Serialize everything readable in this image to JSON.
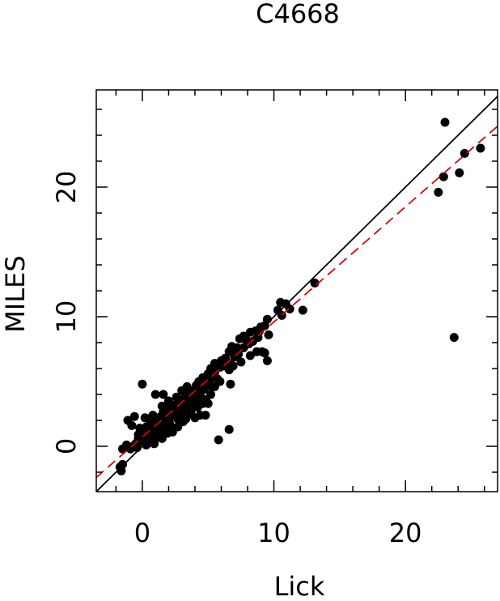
{
  "chart_data": {
    "type": "scatter",
    "title": "C4668",
    "xlabel": "Lick",
    "ylabel": "MILES",
    "xlim": [
      -3.5,
      27
    ],
    "ylim": [
      -3.5,
      27.5
    ],
    "xticks": [
      0,
      10,
      20
    ],
    "yticks": [
      0,
      10,
      20
    ],
    "grid": false,
    "legend": "none",
    "colors": {
      "points": "#000000",
      "identity_line": "#000000",
      "fit_line": "#dd0000"
    },
    "lines": [
      {
        "name": "identity",
        "style": "solid",
        "color": "#000000",
        "x": [
          -3.5,
          27
        ],
        "y": [
          -3.5,
          27
        ]
      },
      {
        "name": "fit",
        "style": "dashed",
        "color": "#dd0000",
        "x": [
          -3.5,
          27
        ],
        "y": [
          -2.4,
          24.7
        ]
      }
    ],
    "points": [
      [
        23.0,
        25.0
      ],
      [
        24.5,
        22.6
      ],
      [
        25.7,
        23.0
      ],
      [
        22.9,
        20.8
      ],
      [
        24.1,
        21.1
      ],
      [
        22.5,
        19.6
      ],
      [
        23.7,
        8.4
      ],
      [
        13.1,
        12.6
      ],
      [
        10.5,
        11.1
      ],
      [
        10.9,
        11.0
      ],
      [
        11.2,
        10.6
      ],
      [
        12.2,
        10.5
      ],
      [
        10.3,
        10.5
      ],
      [
        10.6,
        10.1
      ],
      [
        9.5,
        9.8
      ],
      [
        9.6,
        8.6
      ],
      [
        9.0,
        9.2
      ],
      [
        9.3,
        9.3
      ],
      [
        8.6,
        8.9
      ],
      [
        8.2,
        8.8
      ],
      [
        8.8,
        8.4
      ],
      [
        7.7,
        8.5
      ],
      [
        7.4,
        8.3
      ],
      [
        8.1,
        7.9
      ],
      [
        7.7,
        7.6
      ],
      [
        7.2,
        7.6
      ],
      [
        6.8,
        7.7
      ],
      [
        6.6,
        7.3
      ],
      [
        7.0,
        6.9
      ],
      [
        8.7,
        7.3
      ],
      [
        9.1,
        7.3
      ],
      [
        9.3,
        7.2
      ],
      [
        8.2,
        7.0
      ],
      [
        9.5,
        6.6
      ],
      [
        6.3,
        6.8
      ],
      [
        6.0,
        6.6
      ],
      [
        6.4,
        6.3
      ],
      [
        5.5,
        6.4
      ],
      [
        5.9,
        6.1
      ],
      [
        6.6,
        5.9
      ],
      [
        6.7,
        6.4
      ],
      [
        6.9,
        6.2
      ],
      [
        5.2,
        6.0
      ],
      [
        5.5,
        5.7
      ],
      [
        4.9,
        5.4
      ],
      [
        5.1,
        5.1
      ],
      [
        4.6,
        5.3
      ],
      [
        4.3,
        5.0
      ],
      [
        4.9,
        4.8
      ],
      [
        4.5,
        4.5
      ],
      [
        4.1,
        4.7
      ],
      [
        3.9,
        4.3
      ],
      [
        4.7,
        4.4
      ],
      [
        5.7,
        5.2
      ],
      [
        3.6,
        4.1
      ],
      [
        3.8,
        3.8
      ],
      [
        3.3,
        4.0
      ],
      [
        4.2,
        3.6
      ],
      [
        3.1,
        3.6
      ],
      [
        3.5,
        3.4
      ],
      [
        2.9,
        3.4
      ],
      [
        4.6,
        3.3
      ],
      [
        2.8,
        3.1
      ],
      [
        3.3,
        3.0
      ],
      [
        2.5,
        3.2
      ],
      [
        3.9,
        3.0
      ],
      [
        2.3,
        3.0
      ],
      [
        2.6,
        2.7
      ],
      [
        3.0,
        2.5
      ],
      [
        1.9,
        3.0
      ],
      [
        2.1,
        2.5
      ],
      [
        1.6,
        2.7
      ],
      [
        2.4,
        2.3
      ],
      [
        1.8,
        2.1
      ],
      [
        1.4,
        2.3
      ],
      [
        2.9,
        2.0
      ],
      [
        1.5,
        1.9
      ],
      [
        1.1,
        2.1
      ],
      [
        1.9,
        1.6
      ],
      [
        1.3,
        1.6
      ],
      [
        0.9,
        1.8
      ],
      [
        0.6,
        1.9
      ],
      [
        1.0,
        1.3
      ],
      [
        0.6,
        1.4
      ],
      [
        0.3,
        1.5
      ],
      [
        0.7,
        1.0
      ],
      [
        0.2,
        1.1
      ],
      [
        0.4,
        0.8
      ],
      [
        0.0,
        1.0
      ],
      [
        -0.2,
        1.4
      ],
      [
        0.1,
        0.6
      ],
      [
        -0.1,
        0.4
      ],
      [
        0.4,
        0.3
      ],
      [
        -0.3,
        0.6
      ],
      [
        -0.5,
        0.2
      ],
      [
        -0.7,
        0.0
      ],
      [
        -0.4,
        -0.1
      ],
      [
        -0.9,
        -0.2
      ],
      [
        -1.2,
        0.1
      ],
      [
        -1.5,
        -0.2
      ],
      [
        -1.7,
        -1.6
      ],
      [
        -1.5,
        -1.4
      ],
      [
        -1.6,
        -1.9
      ],
      [
        0.0,
        4.8
      ],
      [
        -0.8,
        1.6
      ],
      [
        -1.1,
        2.0
      ],
      [
        -0.6,
        2.3
      ],
      [
        0.2,
        2.2
      ],
      [
        1.6,
        4.0
      ],
      [
        1.0,
        4.0
      ],
      [
        1.9,
        1.0
      ],
      [
        2.3,
        1.1
      ],
      [
        1.5,
        0.6
      ],
      [
        1.0,
        0.6
      ],
      [
        0.6,
        0.3
      ],
      [
        0.9,
        0.2
      ],
      [
        0.3,
        0.1
      ],
      [
        1.3,
        0.9
      ],
      [
        2.1,
        1.7
      ],
      [
        2.7,
        1.5
      ],
      [
        3.1,
        1.9
      ],
      [
        3.5,
        2.6
      ],
      [
        4.0,
        2.2
      ],
      [
        4.4,
        2.4
      ],
      [
        4.8,
        2.4
      ],
      [
        4.2,
        3.0
      ],
      [
        3.7,
        2.5
      ],
      [
        4.8,
        3.6
      ],
      [
        5.2,
        4.0
      ],
      [
        5.0,
        3.3
      ],
      [
        5.5,
        4.6
      ],
      [
        5.9,
        5.0
      ],
      [
        5.8,
        0.5
      ],
      [
        6.6,
        1.3
      ],
      [
        6.7,
        4.8
      ],
      [
        2.0,
        3.5
      ],
      [
        1.5,
        3.1
      ],
      [
        2.6,
        3.8
      ],
      [
        3.0,
        4.3
      ],
      [
        3.4,
        4.6
      ],
      [
        2.7,
        2.1
      ],
      [
        3.3,
        2.1
      ],
      [
        2.2,
        1.4
      ],
      [
        1.7,
        1.1
      ],
      [
        1.2,
        1.2
      ],
      [
        0.8,
        2.4
      ],
      [
        0.5,
        2.1
      ],
      [
        -0.3,
        0.9
      ],
      [
        0.5,
        0.7
      ],
      [
        1.7,
        2.5
      ],
      [
        2.4,
        2.8
      ],
      [
        3.6,
        3.9
      ],
      [
        4.4,
        3.9
      ],
      [
        4.1,
        4.1
      ],
      [
        5.3,
        4.6
      ],
      [
        5.0,
        5.6
      ],
      [
        6.2,
        6.2
      ],
      [
        7.3,
        7.1
      ],
      [
        7.9,
        8.2
      ],
      [
        8.4,
        8.1
      ],
      [
        8.9,
        8.9
      ],
      [
        7.5,
        6.5
      ],
      [
        6.9,
        7.4
      ],
      [
        4.7,
        4.9
      ],
      [
        3.8,
        3.3
      ],
      [
        2.9,
        2.9
      ]
    ]
  }
}
